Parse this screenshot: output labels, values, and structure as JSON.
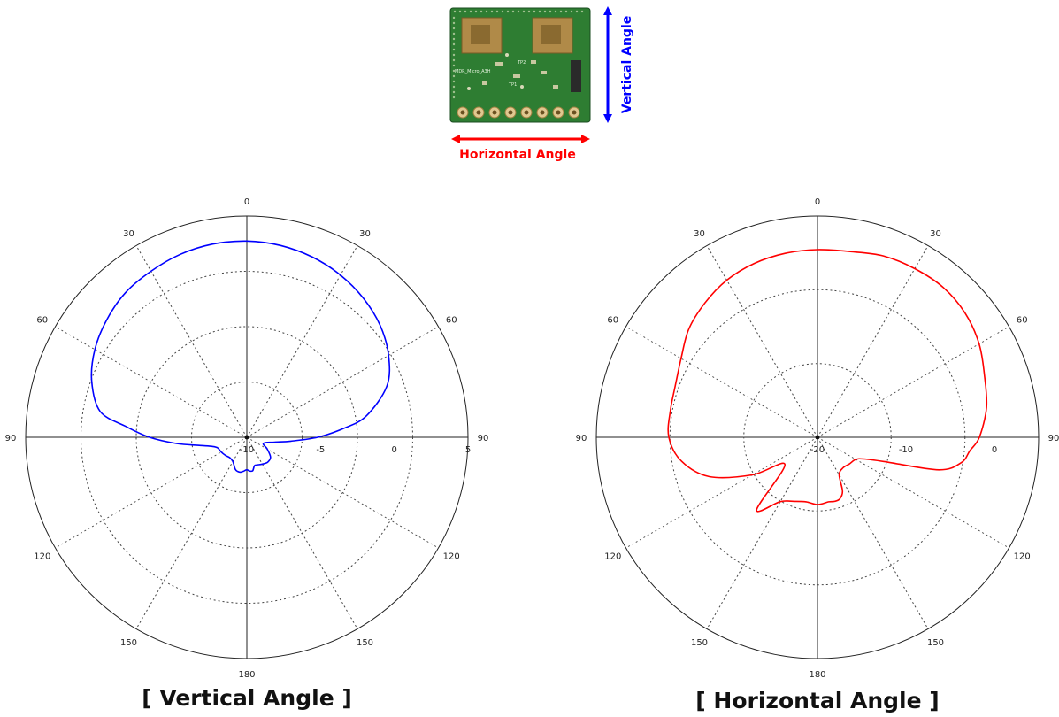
{
  "diagram": {
    "vertical_axis_label": "Vertical Angle",
    "horizontal_axis_label": "Horizontal Angle",
    "vertical_color": "#0000ff",
    "horizontal_color": "#ff0000",
    "board_silkscreen": [
      "MDR_Micro_A3H",
      "TP2",
      "TP1"
    ],
    "board_color": "#2e7d32"
  },
  "chart_data": [
    {
      "type": "polar-line",
      "caption": "[ Vertical Angle ]",
      "angle_ticks": [
        "0",
        "30",
        "60",
        "90",
        "120",
        "150",
        "180",
        "150",
        "120",
        "90",
        "60",
        "30"
      ],
      "radial_ticks": [
        "-10",
        "-5",
        "0",
        "5"
      ],
      "r_range": [
        -10,
        5
      ],
      "grid": true,
      "color": "#0000ff",
      "angles_deg": [
        0,
        10,
        20,
        30,
        40,
        50,
        60,
        70,
        80,
        85,
        90,
        95,
        100,
        110,
        120,
        130,
        140,
        150,
        160,
        165,
        170,
        175,
        180,
        185,
        190,
        195,
        200,
        210,
        220,
        230,
        240,
        250,
        255,
        260,
        265,
        270,
        275,
        280,
        290,
        300,
        310,
        320,
        330,
        340,
        350
      ],
      "values": [
        3.3,
        3.2,
        3.0,
        2.7,
        2.3,
        1.8,
        1.1,
        0.1,
        -1.8,
        -3.5,
        -5.2,
        -7.0,
        -8.1,
        -8.8,
        -8.4,
        -7.9,
        -7.8,
        -7.9,
        -8.0,
        -8.0,
        -7.7,
        -7.7,
        -7.8,
        -7.7,
        -7.6,
        -7.6,
        -7.7,
        -8.1,
        -8.2,
        -8.1,
        -8.0,
        -7.9,
        -7.6,
        -6.8,
        -5.2,
        -3.4,
        -1.8,
        0.1,
        1.2,
        1.9,
        2.4,
        2.8,
        3.0,
        3.2,
        3.3
      ]
    },
    {
      "type": "polar-line",
      "caption": "[ Horizontal Angle ]",
      "angle_ticks": [
        "0",
        "30",
        "60",
        "90",
        "120",
        "150",
        "180",
        "150",
        "120",
        "90",
        "60",
        "30"
      ],
      "radial_ticks": [
        "-20",
        "-10",
        "0"
      ],
      "r_range": [
        -20,
        5
      ],
      "grid": true,
      "color": "#ff0000",
      "angles_deg": [
        0,
        10,
        20,
        30,
        40,
        50,
        60,
        70,
        80,
        90,
        95,
        100,
        105,
        110,
        115,
        120,
        130,
        140,
        150,
        155,
        160,
        165,
        170,
        180,
        190,
        200,
        210,
        220,
        230,
        240,
        250,
        260,
        270,
        280,
        290,
        300,
        310,
        320,
        330,
        340,
        350
      ],
      "values": [
        1.2,
        1.3,
        1.8,
        2.0,
        2.1,
        1.8,
        1.1,
        0.1,
        -0.6,
        -1.7,
        -2.7,
        -3.5,
        -5.8,
        -12.0,
        -14.2,
        -15.0,
        -15.3,
        -15.5,
        -15.1,
        -13.3,
        -12.6,
        -12.5,
        -12.6,
        -12.4,
        -12.6,
        -12.3,
        -11.6,
        -9.3,
        -15.2,
        -11.5,
        -7.0,
        -4.4,
        -3.2,
        -3.1,
        -2.9,
        -2.2,
        -1.0,
        -0.2,
        0.5,
        0.9,
        1.1
      ]
    }
  ]
}
